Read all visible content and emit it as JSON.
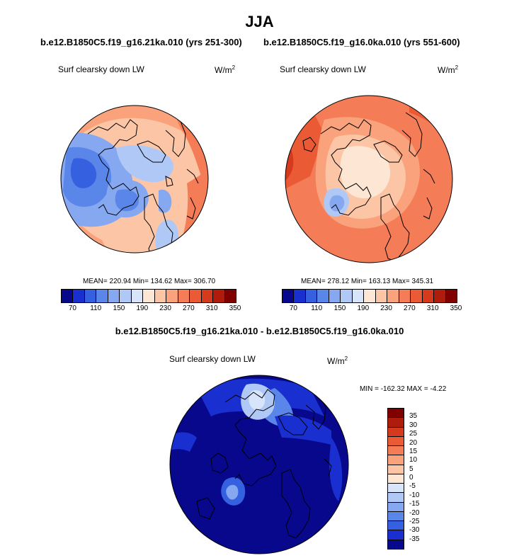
{
  "chart_data": [
    {
      "type": "heatmap",
      "projection": "north-polar-stereographic",
      "title": "JJA",
      "subtitle": "b.e12.B1850C5.f19_g16.21ka.010 (yrs 251-300)",
      "variable": "Surf clearsky down LW",
      "units_base": "W/m",
      "units_exp": "2",
      "stats_text": "MEAN= 220.94  Min= 134.62  Max= 306.70",
      "mean": 220.94,
      "min": 134.62,
      "max": 306.7,
      "colorbar_levels": [
        70,
        110,
        150,
        190,
        230,
        270,
        310,
        350
      ],
      "colorbar_ticks": [
        "70",
        "110",
        "150",
        "190",
        "230",
        "270",
        "310",
        "350"
      ]
    },
    {
      "type": "heatmap",
      "projection": "north-polar-stereographic",
      "title": "JJA",
      "subtitle": "b.e12.B1850C5.f19_g16.0ka.010 (yrs 551-600)",
      "variable": "Surf clearsky down LW",
      "units_base": "W/m",
      "units_exp": "2",
      "stats_text": "MEAN= 278.12  Min= 163.13  Max= 345.31",
      "mean": 278.12,
      "min": 163.13,
      "max": 345.31,
      "colorbar_levels": [
        70,
        110,
        150,
        190,
        230,
        270,
        310,
        350
      ],
      "colorbar_ticks": [
        "70",
        "110",
        "150",
        "190",
        "230",
        "270",
        "310",
        "350"
      ]
    },
    {
      "type": "heatmap",
      "projection": "north-polar-stereographic",
      "title": "b.e12.B1850C5.f19_g16.21ka.010 - b.e12.B1850C5.f19_g16.0ka.010",
      "variable": "Surf clearsky down LW",
      "units_base": "W/m",
      "units_exp": "2",
      "stats_text": "MIN = -162.32 MAX =  -4.22",
      "min": -162.32,
      "max": -4.22,
      "colorbar_ticks": [
        "35",
        "30",
        "25",
        "20",
        "15",
        "10",
        "5",
        "0",
        "-5",
        "-10",
        "-15",
        "-20",
        "-25",
        "-30",
        "-35"
      ]
    }
  ],
  "colors": {
    "abs_scale": [
      "#08088c",
      "#1a2fd0",
      "#3560e0",
      "#5a86ea",
      "#86a8f0",
      "#b0c8f6",
      "#d8e4fa",
      "#fde6d4",
      "#fcc6a6",
      "#f9a27c",
      "#f47c56",
      "#ea5a34",
      "#d63a1c",
      "#b01c0c",
      "#800000"
    ],
    "diff_scale": [
      "#800000",
      "#b01c0c",
      "#d63a1c",
      "#ea5a34",
      "#f47c56",
      "#f9a27c",
      "#fcc6a6",
      "#fde6d4",
      "#d8e4fa",
      "#b0c8f6",
      "#86a8f0",
      "#5a86ea",
      "#3560e0",
      "#1a2fd0",
      "#08088c"
    ]
  }
}
